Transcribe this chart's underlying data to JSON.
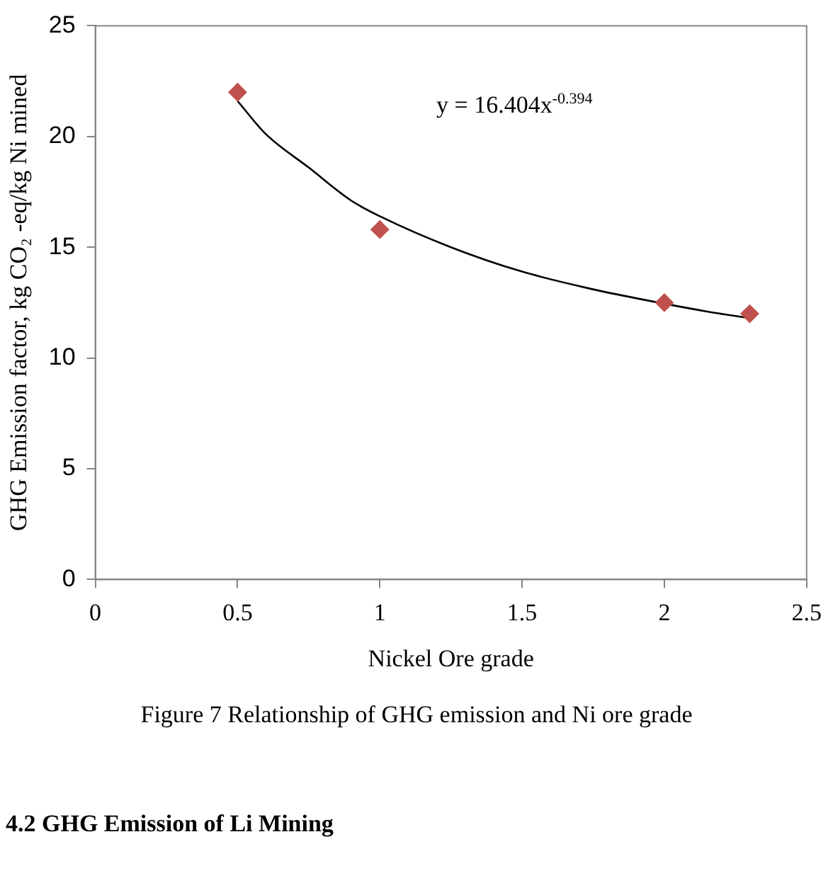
{
  "chart_data": {
    "type": "scatter",
    "xlabel": "Nickel Ore grade",
    "ylabel": "GHG Emission factor, kg CO₂ -eq/kg Ni mined",
    "xlim": [
      0,
      2.5
    ],
    "xticks": [
      0,
      0.5,
      1,
      1.5,
      2,
      2.5
    ],
    "ylim": [
      0,
      25
    ],
    "yticks": [
      0,
      5,
      10,
      15,
      20,
      25
    ],
    "series": [
      {
        "type": "scatter",
        "marker": "diamond",
        "color": "#c0504d",
        "x": [
          0.5,
          1,
          2,
          2.3
        ],
        "values": [
          22,
          15.8,
          12.5,
          12
        ]
      },
      {
        "type": "line",
        "marker": "none",
        "color": "#000000",
        "x": [
          0.5,
          0.6,
          0.75,
          0.9,
          1,
          1.25,
          1.5,
          1.75,
          1.9,
          2.15,
          2.3
        ],
        "values": [
          21.6,
          20.1,
          18.6,
          17.1,
          16.4,
          15,
          13.9,
          13.1,
          12.7,
          12.1,
          11.8
        ]
      }
    ],
    "annotations": [
      "y = 16.404x$^{-0.394}$",
      "Figure 7 Relationship of GHG emission and Ni ore grade",
      "4.2 GHG Emission of Li Mining"
    ]
  }
}
